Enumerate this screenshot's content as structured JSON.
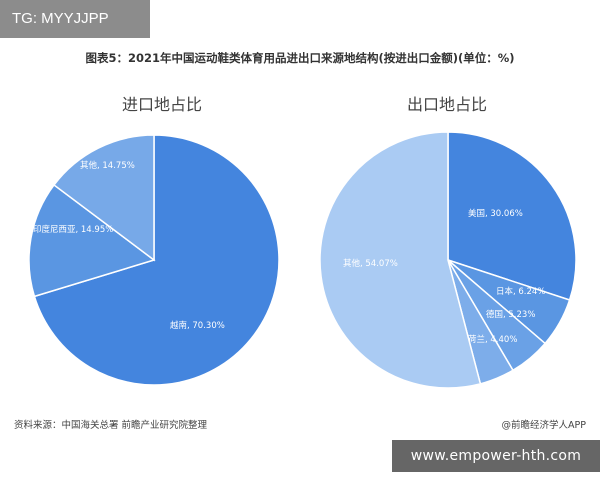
{
  "watermark_tag": "TG: MYYJJPP",
  "figure_title": "图表5：2021年中国运动鞋类体育用品进出口来源地结构(按进出口金额)(单位：%)",
  "footer": {
    "source": "资料来源：中国海关总署 前瞻产业研究院整理",
    "brand": "@前瞻经济学人APP"
  },
  "banner": "www.empower-hth.com",
  "colors": {
    "dark_blue": "#4485de",
    "mid_blue": "#6aa1e6",
    "light_blue": "#aacbf3"
  },
  "chart_data": [
    {
      "type": "pie",
      "title": "进口地占比",
      "slices": [
        {
          "label": "越南, 70.30%",
          "value": 70.3,
          "color": "#4485de"
        },
        {
          "label": "印度尼西亚, 14.95%",
          "value": 14.95,
          "color": "#5a96e2"
        },
        {
          "label": "其他, 14.75%",
          "value": 14.75,
          "color": "#77a9e8"
        }
      ]
    },
    {
      "type": "pie",
      "title": "出口地占比",
      "slices": [
        {
          "label": "美国, 30.06%",
          "value": 30.06,
          "color": "#4485de"
        },
        {
          "label": "日本, 6.24%",
          "value": 6.24,
          "color": "#5a96e2"
        },
        {
          "label": "德国, 5.23%",
          "value": 5.23,
          "color": "#6aa1e6"
        },
        {
          "label": "荷兰, 4.40%",
          "value": 4.4,
          "color": "#7dadea"
        },
        {
          "label": "其他, 54.07%",
          "value": 54.07,
          "color": "#aacbf3"
        }
      ]
    }
  ]
}
